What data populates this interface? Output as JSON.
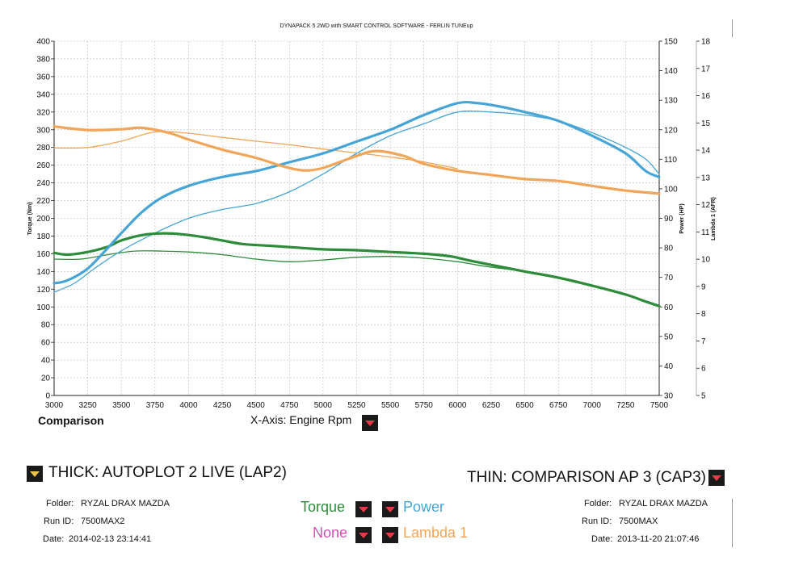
{
  "chart_data": {
    "type": "line",
    "title": "DYNAPACK 5 2WD with SMART CONTROL SOFTWARE - FERLIN TUNEup",
    "x_ticks": [
      3000,
      3250,
      3500,
      3750,
      4000,
      4250,
      4500,
      4750,
      5000,
      5250,
      5500,
      5750,
      6000,
      6250,
      6500,
      6750,
      7000,
      7250,
      7500
    ],
    "y_left": {
      "label": "Torque (Nm)",
      "ticks": [
        0,
        20,
        40,
        60,
        80,
        100,
        120,
        140,
        160,
        180,
        200,
        220,
        240,
        260,
        280,
        300,
        320,
        340,
        360,
        380,
        400
      ],
      "range": [
        0,
        400
      ]
    },
    "y_power": {
      "label": "Power (HP)",
      "ticks": [
        30,
        40,
        50,
        60,
        70,
        80,
        90,
        100,
        110,
        120,
        130,
        140,
        150
      ],
      "range": [
        30,
        150
      ]
    },
    "y_lambda": {
      "label": "Lambda 1 (AFR)",
      "ticks": [
        5,
        6,
        7,
        8,
        9,
        10,
        11,
        12,
        13,
        14,
        15,
        16,
        17,
        18
      ],
      "range": [
        5,
        18
      ]
    },
    "xlim": [
      3000,
      7500
    ],
    "grid": true,
    "series": [
      {
        "name": "Torque",
        "run": "THICK",
        "axis": "torque",
        "color": "#2e8b3a",
        "width": 3.2,
        "points": [
          [
            3000,
            161
          ],
          [
            3100,
            159
          ],
          [
            3250,
            162
          ],
          [
            3400,
            168
          ],
          [
            3500,
            175
          ],
          [
            3650,
            181
          ],
          [
            3800,
            183
          ],
          [
            3950,
            182
          ],
          [
            4100,
            179
          ],
          [
            4250,
            175
          ],
          [
            4400,
            171
          ],
          [
            4600,
            169
          ],
          [
            4800,
            167
          ],
          [
            5000,
            165
          ],
          [
            5250,
            164
          ],
          [
            5500,
            162
          ],
          [
            5750,
            160
          ],
          [
            5950,
            157
          ],
          [
            6100,
            152
          ],
          [
            6300,
            146
          ],
          [
            6500,
            140
          ],
          [
            6750,
            133
          ],
          [
            7000,
            124
          ],
          [
            7250,
            114
          ],
          [
            7400,
            106
          ],
          [
            7500,
            101
          ]
        ]
      },
      {
        "name": "Torque",
        "run": "THIN",
        "axis": "torque",
        "color": "#2e8b3a",
        "width": 1.3,
        "points": [
          [
            3000,
            154
          ],
          [
            3200,
            154
          ],
          [
            3400,
            159
          ],
          [
            3600,
            163
          ],
          [
            3800,
            163
          ],
          [
            4000,
            162
          ],
          [
            4250,
            159
          ],
          [
            4500,
            154
          ],
          [
            4750,
            151
          ],
          [
            5000,
            153
          ],
          [
            5250,
            156
          ],
          [
            5500,
            157
          ],
          [
            5750,
            155
          ],
          [
            6000,
            151
          ],
          [
            6200,
            146
          ],
          [
            6400,
            142
          ]
        ]
      },
      {
        "name": "Power",
        "run": "THICK",
        "axis": "power",
        "color": "#46a5d6",
        "width": 3.2,
        "points": [
          [
            3000,
            68
          ],
          [
            3100,
            69
          ],
          [
            3250,
            73
          ],
          [
            3400,
            80
          ],
          [
            3500,
            85
          ],
          [
            3650,
            92
          ],
          [
            3800,
            97
          ],
          [
            4000,
            101
          ],
          [
            4250,
            104
          ],
          [
            4500,
            106
          ],
          [
            4750,
            109
          ],
          [
            5000,
            112
          ],
          [
            5250,
            116
          ],
          [
            5500,
            120
          ],
          [
            5750,
            125
          ],
          [
            6000,
            129
          ],
          [
            6150,
            129
          ],
          [
            6300,
            128
          ],
          [
            6500,
            126
          ],
          [
            6750,
            123
          ],
          [
            7000,
            118
          ],
          [
            7250,
            112
          ],
          [
            7400,
            106
          ],
          [
            7500,
            104
          ]
        ]
      },
      {
        "name": "Power",
        "run": "THIN",
        "axis": "power",
        "color": "#46a5d6",
        "width": 1.3,
        "points": [
          [
            3000,
            65
          ],
          [
            3150,
            68
          ],
          [
            3300,
            73
          ],
          [
            3500,
            79
          ],
          [
            3750,
            85
          ],
          [
            4000,
            90
          ],
          [
            4250,
            93
          ],
          [
            4500,
            95
          ],
          [
            4750,
            99
          ],
          [
            5000,
            105
          ],
          [
            5250,
            112
          ],
          [
            5500,
            118
          ],
          [
            5750,
            122
          ],
          [
            6000,
            126
          ],
          [
            6250,
            126
          ],
          [
            6500,
            125
          ],
          [
            6750,
            123
          ],
          [
            7000,
            119
          ],
          [
            7250,
            114
          ],
          [
            7400,
            110
          ],
          [
            7500,
            105
          ]
        ]
      },
      {
        "name": "Lambda 1",
        "run": "THICK",
        "axis": "lambda",
        "color": "#f0a558",
        "width": 3.2,
        "points": [
          [
            3000,
            14.87
          ],
          [
            3250,
            14.74
          ],
          [
            3500,
            14.77
          ],
          [
            3650,
            14.82
          ],
          [
            3850,
            14.64
          ],
          [
            4000,
            14.39
          ],
          [
            4250,
            14.02
          ],
          [
            4500,
            13.72
          ],
          [
            4700,
            13.41
          ],
          [
            4850,
            13.26
          ],
          [
            5000,
            13.35
          ],
          [
            5250,
            13.79
          ],
          [
            5400,
            13.97
          ],
          [
            5600,
            13.79
          ],
          [
            5750,
            13.5
          ],
          [
            6000,
            13.24
          ],
          [
            6250,
            13.09
          ],
          [
            6500,
            12.94
          ],
          [
            6750,
            12.87
          ],
          [
            7000,
            12.69
          ],
          [
            7250,
            12.52
          ],
          [
            7500,
            12.41
          ]
        ]
      },
      {
        "name": "Lambda 1",
        "run": "THIN",
        "axis": "lambda",
        "color": "#f0a558",
        "width": 1.3,
        "points": [
          [
            3000,
            14.08
          ],
          [
            3250,
            14.1
          ],
          [
            3500,
            14.33
          ],
          [
            3750,
            14.67
          ],
          [
            4000,
            14.62
          ],
          [
            4250,
            14.47
          ],
          [
            4500,
            14.33
          ],
          [
            4750,
            14.2
          ],
          [
            5000,
            14.04
          ],
          [
            5250,
            13.9
          ],
          [
            5500,
            13.75
          ],
          [
            5750,
            13.57
          ],
          [
            6000,
            13.32
          ]
        ]
      }
    ]
  },
  "bottom": {
    "comparison_label": "Comparison",
    "xaxis_label": "X-Axis: Engine Rpm",
    "thick_title": "THICK: AUTOPLOT 2 LIVE (LAP2)",
    "thin_title": "THIN: COMPARISON AP 3 (CAP3)",
    "left_run": {
      "folder_label": "Folder:",
      "folder": "RYZAL DRAX MAZDA",
      "run_label": "Run ID:",
      "run_id": "7500MAX2",
      "date_label": "Date:",
      "date": "2014-02-13 23:14:41"
    },
    "right_run": {
      "folder_label": "Folder:",
      "folder": "RYZAL DRAX MAZDA",
      "run_label": "Run ID:",
      "run_id": "7500MAX",
      "date_label": "Date:",
      "date": "2013-11-20 21:07:46"
    },
    "legend": {
      "torque": "Torque",
      "power": "Power",
      "none": "None",
      "lambda": "Lambda 1"
    },
    "colors": {
      "torque": "#2e8b3a",
      "power": "#46a5d6",
      "none": "#d94fb0",
      "lambda": "#f0a558"
    }
  }
}
